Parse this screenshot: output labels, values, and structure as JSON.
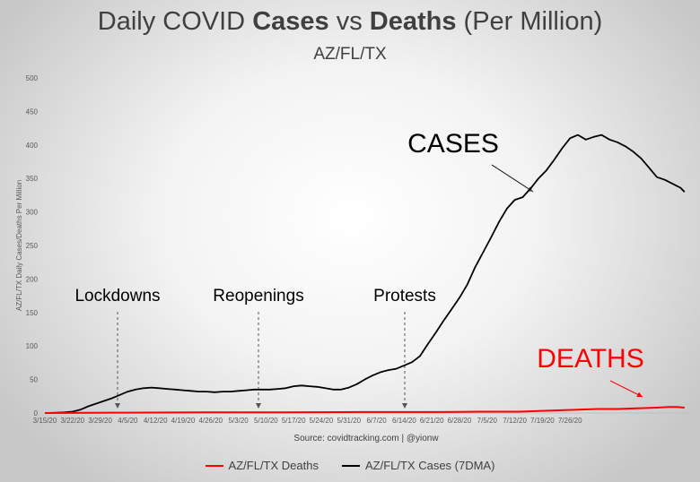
{
  "chart_data": {
    "type": "line",
    "title": {
      "prefix": "Daily COVID ",
      "bold1": "Cases",
      "mid": " vs ",
      "bold2": "Deaths",
      "suffix": " (Per Million)"
    },
    "subtitle": "AZ/FL/TX",
    "ylabel": "AZ/FL/TX Daily Cases/Deaths Per Million",
    "source": "Source: covidtracking.com | @yionw",
    "ylim": [
      0,
      500
    ],
    "yticks": [
      "0",
      "50",
      "100",
      "150",
      "200",
      "250",
      "300",
      "350",
      "400",
      "450",
      "500"
    ],
    "xticks": [
      "3/15/20",
      "3/22/20",
      "3/29/20",
      "4/5/20",
      "4/12/20",
      "4/19/20",
      "4/26/20",
      "5/3/20",
      "5/10/20",
      "5/17/20",
      "5/24/20",
      "5/31/20",
      "6/7/20",
      "6/14/20",
      "6/21/20",
      "6/28/20",
      "7/5/20",
      "7/12/20",
      "7/19/20",
      "7/26/20"
    ],
    "x_start": "2020-03-15",
    "series": [
      {
        "name": "AZ/FL/TX Cases (7DMA)",
        "color": "#000000",
        "points": [
          [
            0,
            0
          ],
          [
            3,
            0.5
          ],
          [
            5,
            1
          ],
          [
            7,
            2
          ],
          [
            9,
            5
          ],
          [
            11,
            10
          ],
          [
            13,
            14
          ],
          [
            15,
            18
          ],
          [
            17,
            22
          ],
          [
            19,
            27
          ],
          [
            21,
            32
          ],
          [
            23,
            35
          ],
          [
            25,
            37
          ],
          [
            27,
            38
          ],
          [
            29,
            37
          ],
          [
            31,
            36
          ],
          [
            33,
            35
          ],
          [
            35,
            34
          ],
          [
            37,
            33
          ],
          [
            39,
            32
          ],
          [
            41,
            32
          ],
          [
            43,
            31
          ],
          [
            45,
            32
          ],
          [
            47,
            32
          ],
          [
            49,
            33
          ],
          [
            51,
            34
          ],
          [
            53,
            35
          ],
          [
            55,
            35
          ],
          [
            57,
            35
          ],
          [
            59,
            36
          ],
          [
            61,
            37
          ],
          [
            63,
            40
          ],
          [
            65,
            41
          ],
          [
            67,
            40
          ],
          [
            69,
            39
          ],
          [
            71,
            37
          ],
          [
            73,
            35
          ],
          [
            75,
            35
          ],
          [
            77,
            38
          ],
          [
            79,
            43
          ],
          [
            81,
            50
          ],
          [
            83,
            56
          ],
          [
            85,
            61
          ],
          [
            87,
            64
          ],
          [
            89,
            66
          ],
          [
            91,
            71
          ],
          [
            93,
            76
          ],
          [
            95,
            85
          ],
          [
            97,
            103
          ],
          [
            99,
            120
          ],
          [
            101,
            138
          ],
          [
            103,
            155
          ],
          [
            105,
            172
          ],
          [
            107,
            192
          ],
          [
            109,
            218
          ],
          [
            111,
            240
          ],
          [
            113,
            262
          ],
          [
            115,
            285
          ],
          [
            117,
            305
          ],
          [
            119,
            318
          ],
          [
            121,
            322
          ],
          [
            123,
            335
          ],
          [
            125,
            350
          ],
          [
            127,
            362
          ],
          [
            129,
            378
          ],
          [
            131,
            395
          ],
          [
            133,
            410
          ],
          [
            135,
            415
          ],
          [
            137,
            408
          ],
          [
            139,
            412
          ],
          [
            141,
            415
          ],
          [
            143,
            408
          ],
          [
            145,
            404
          ],
          [
            147,
            398
          ],
          [
            149,
            390
          ],
          [
            151,
            380
          ],
          [
            153,
            366
          ],
          [
            155,
            352
          ],
          [
            157,
            348
          ],
          [
            159,
            342
          ],
          [
            161,
            336
          ],
          [
            162,
            330
          ]
        ]
      },
      {
        "name": "AZ/FL/TX Deaths",
        "color": "#ff0000",
        "points": [
          [
            0,
            0
          ],
          [
            20,
            0.5
          ],
          [
            40,
            1
          ],
          [
            60,
            1
          ],
          [
            80,
            1.5
          ],
          [
            100,
            1.5
          ],
          [
            110,
            2
          ],
          [
            120,
            2
          ],
          [
            125,
            3
          ],
          [
            130,
            4
          ],
          [
            135,
            5
          ],
          [
            140,
            6
          ],
          [
            145,
            6
          ],
          [
            150,
            7
          ],
          [
            155,
            8
          ],
          [
            158,
            9
          ],
          [
            160,
            9
          ],
          [
            162,
            8
          ]
        ]
      }
    ],
    "annotations": [
      {
        "text": "Lockdowns",
        "at_x": 16
      },
      {
        "text": "Reopenings",
        "at_x": 46
      },
      {
        "text": "Protests",
        "at_x": 76
      },
      {
        "text": "CASES"
      },
      {
        "text": "DEATHS",
        "color": "#ff0000"
      }
    ],
    "legend_position": "bottom",
    "grid": false
  }
}
